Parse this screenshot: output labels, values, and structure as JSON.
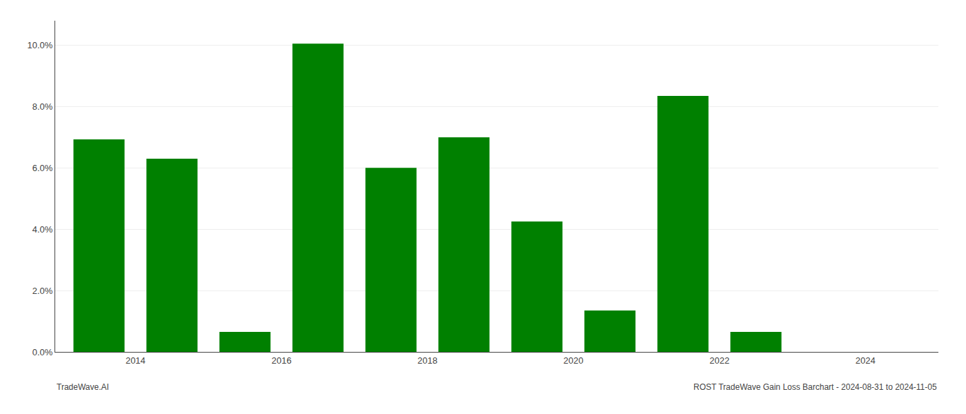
{
  "chart_data": {
    "type": "bar",
    "x": [
      2013,
      2014,
      2015,
      2016,
      2017,
      2018,
      2019,
      2020,
      2021,
      2022,
      2023
    ],
    "values": [
      0.0693,
      0.063,
      0.0065,
      0.1005,
      0.06,
      0.07,
      0.0425,
      0.0135,
      0.0835,
      0.0065,
      0.0
    ],
    "color": "#008000",
    "xlim": [
      2012.4,
      2024.5
    ],
    "xticks": [
      {
        "value": 2013.5,
        "label": "2014"
      },
      {
        "value": 2015.5,
        "label": "2016"
      },
      {
        "value": 2017.5,
        "label": "2018"
      },
      {
        "value": 2019.5,
        "label": "2020"
      },
      {
        "value": 2021.5,
        "label": "2022"
      },
      {
        "value": 2023.5,
        "label": "2024"
      }
    ],
    "ylim": [
      0,
      0.108
    ],
    "yticks": [
      {
        "value": 0.0,
        "label": "0.0%"
      },
      {
        "value": 0.02,
        "label": "2.0%"
      },
      {
        "value": 0.04,
        "label": "4.0%"
      },
      {
        "value": 0.06,
        "label": "6.0%"
      },
      {
        "value": 0.08,
        "label": "8.0%"
      },
      {
        "value": 0.1,
        "label": "10.0%"
      }
    ],
    "grid": "y",
    "annotations": [
      "TradeWave.AI",
      "ROST TradeWave Gain Loss Barchart - 2024-08-31 to 2024-11-05"
    ]
  }
}
